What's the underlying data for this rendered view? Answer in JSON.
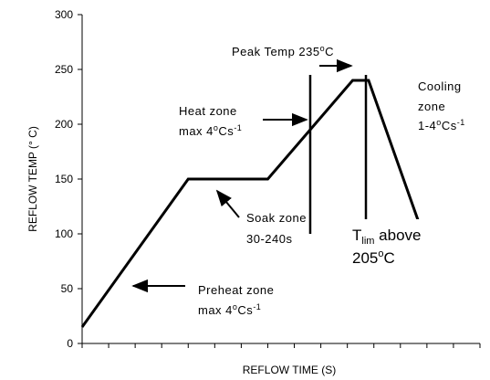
{
  "chart_data": {
    "type": "line",
    "title": "",
    "xlabel": "REFLOW TIME (S)",
    "ylabel": "REFLOW TEMP (° C)",
    "ylim": [
      0,
      300
    ],
    "yticks": [
      "0",
      "50",
      "100",
      "150",
      "200",
      "250",
      "300"
    ],
    "xticks_labeled": false,
    "xlim": [
      0,
      15
    ],
    "grid": false,
    "series": [
      {
        "x": [
          0,
          4,
          7,
          10.2,
          10.8,
          12.7
        ],
        "y": [
          15,
          150,
          150,
          240,
          240,
          110
        ]
      }
    ],
    "vertical_markers_x": [
      8.6,
      10.7
    ],
    "annotations": {
      "peak": {
        "text": "Peak Temp 235",
        "sup": "o",
        "suffix": "C"
      },
      "cooling": {
        "line1": "Cooling",
        "line2": "zone",
        "line3_pre": "1-4",
        "line3_sup1": "o",
        "line3_mid": "Cs",
        "line3_sup2": "-1"
      },
      "heat": {
        "line1": "Heat zone",
        "line2_pre": "max 4",
        "line2_sup1": "o",
        "line2_mid": "Cs",
        "line2_sup2": "-1"
      },
      "soak": {
        "line1": "Soak zone",
        "line2": "30-240s"
      },
      "tlim": {
        "t": "T",
        "sub": "lim",
        "rest": " above",
        "line2_pre": "205",
        "line2_sup": "o",
        "line2_suf": "C"
      },
      "preheat": {
        "line1": "Preheat zone",
        "line2_pre": "max 4",
        "line2_sup1": "o",
        "line2_mid": "Cs",
        "line2_sup2": "-1"
      }
    }
  }
}
